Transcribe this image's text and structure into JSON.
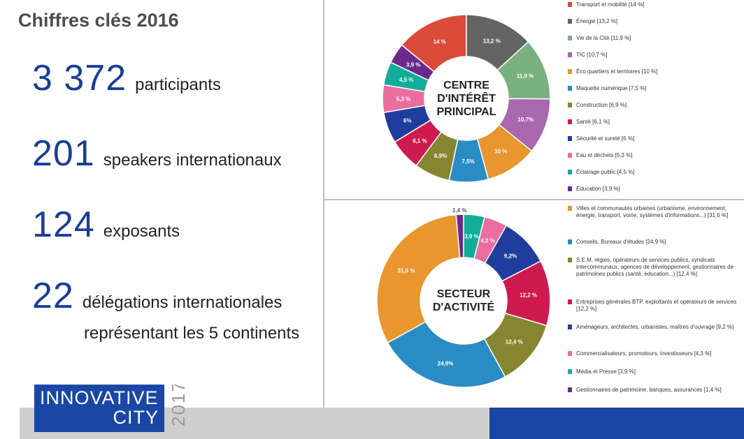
{
  "page": {
    "title": "Chiffres clés 2016",
    "stats": [
      {
        "number": "3 372",
        "label": "participants"
      },
      {
        "number": "201",
        "label": "speakers internationaux"
      },
      {
        "number": "124",
        "label": "exposants"
      },
      {
        "number": "22",
        "label": "délégations internationales"
      }
    ],
    "stat_continuation": "représentant les 5 continents",
    "logo": {
      "line1": "INNOVATIVE",
      "line2": "CITY",
      "year": "2017"
    },
    "colors": {
      "accent_blue": "#1a47a5",
      "number_blue": "#1a3d96",
      "divider": "#bfbfbf",
      "bottom_gray": "#cfcfd0"
    }
  },
  "chart_data": [
    {
      "type": "pie",
      "center_label": [
        "CENTRE",
        "D'INTÉRÊT",
        "PRINCIPAL"
      ],
      "slices": [
        {
          "label": "Transport et mobilité",
          "value": 14,
          "value_label": "14 %",
          "legend": "Transport et mobilité [14 %]",
          "color": "#dc4b3a"
        },
        {
          "label": "Énergie",
          "value": 13.2,
          "value_label": "13,2 %",
          "legend": "Énergie [13,2 %]",
          "color": "#646464"
        },
        {
          "label": "Vie de la Cité",
          "value": 11.9,
          "value_label": "11,9 %",
          "legend": "Vie de la Cité [11,9 %]",
          "color": "#79b080"
        },
        {
          "label": "TIC",
          "value": 10.7,
          "value_label": "10,7%",
          "legend": "TIC [10,7 %]",
          "color": "#a867ae"
        },
        {
          "label": "Éco quartiers et territoires",
          "value": 10,
          "value_label": "10 %",
          "legend": "Éco quartiers et territoires [10 %]",
          "color": "#e8962d"
        },
        {
          "label": "Maquette numérique",
          "value": 7.5,
          "value_label": "7,5%",
          "legend": "Maquette numérique [7,5 %]",
          "color": "#2a8cc4"
        },
        {
          "label": "Construction",
          "value": 6.9,
          "value_label": "6,9%",
          "legend": "Construction [6,9 %]",
          "color": "#868631"
        },
        {
          "label": "Santé",
          "value": 6.1,
          "value_label": "6,1 %",
          "legend": "Santé [6,1 %]",
          "color": "#cf1a4f"
        },
        {
          "label": "Sécurité et sureté",
          "value": 6,
          "value_label": "6%",
          "legend": "Sécurité et sureté [6 %]",
          "color": "#1f3d9c"
        },
        {
          "label": "Eau et déchets",
          "value": 5.3,
          "value_label": "5,3 %",
          "legend": "Eau et déchets [5,3 %]",
          "color": "#ea6d9d"
        },
        {
          "label": "Éclairage public",
          "value": 4.5,
          "value_label": "4,5 %",
          "legend": "Éclairage public [4,5 %]",
          "color": "#12ad99"
        },
        {
          "label": "Éducation",
          "value": 3.9,
          "value_label": "3,9 %",
          "legend": "Éducation [3,9 %]",
          "color": "#6a2a8c"
        }
      ]
    },
    {
      "type": "pie",
      "center_label": [
        "SECTEUR",
        "D'ACTIVITÉ"
      ],
      "slices": [
        {
          "label": "Gestionnaires de patrimoine, banques, assurances",
          "value": 1.4,
          "value_label": "1,4 %",
          "legend": "Gestionnaires de patrimoine, banques, assurances [1,4 %]",
          "color": "#6a2a8c"
        },
        {
          "label": "Média et Presse",
          "value": 3.9,
          "value_label": "3,9 %",
          "legend": "Média et Presse [3,9 %]",
          "color": "#12ad99"
        },
        {
          "label": "Commercialisateurs, promoteurs, investisseurs",
          "value": 4.3,
          "value_label": "4,3 %",
          "legend": "Commercialisateurs, promoteurs, investisseurs [4,3 %]",
          "color": "#ea6d9d"
        },
        {
          "label": "Aménageurs, architectes, urbanistes, maîtres d'ouvrage",
          "value": 9.2,
          "value_label": "9,2%",
          "legend": "Aménageurs, architectes, urbanistes, maîtres d'ouvrage [9,2 %]",
          "color": "#1f3d9c"
        },
        {
          "label": "Entreprises générales BTP, exploitants et opérateurs de services",
          "value": 12.2,
          "value_label": "12,2 %",
          "legend": "Entreprises générales BTP, exploitants et opérateurs de services [12,2 %]",
          "color": "#cf1a4f"
        },
        {
          "label": "S.E.M. régies, opérateurs de services publics, syndicats intercommunaux, agences de développement, gestionnaires de patrimoines publics (santé, éducation...)",
          "value": 12.4,
          "value_label": "12,4 %",
          "legend": "S.E.M. régies, opérateurs de services publics, syndicats intercommunaux, agences de développement, gestionnaires de patrimoines publics (santé, éducation...) [12,4 %]",
          "color": "#868631"
        },
        {
          "label": "Conseils, Bureaux d'études",
          "value": 24.9,
          "value_label": "24,9%",
          "legend": "Conseils, Bureaux d'études [24,9 %]",
          "color": "#2a8cc4"
        },
        {
          "label": "Villes et communautés urbaines (urbanisme, environnement, énergie, transport, voirie, systèmes d'informations...)",
          "value": 31.6,
          "value_label": "31,6 %",
          "legend": "Villes et communautés urbaines (urbanisme, environnement, énergie, transport, voirie, systèmes d'informations...) [31,6 %]",
          "color": "#e8962d"
        }
      ]
    }
  ]
}
